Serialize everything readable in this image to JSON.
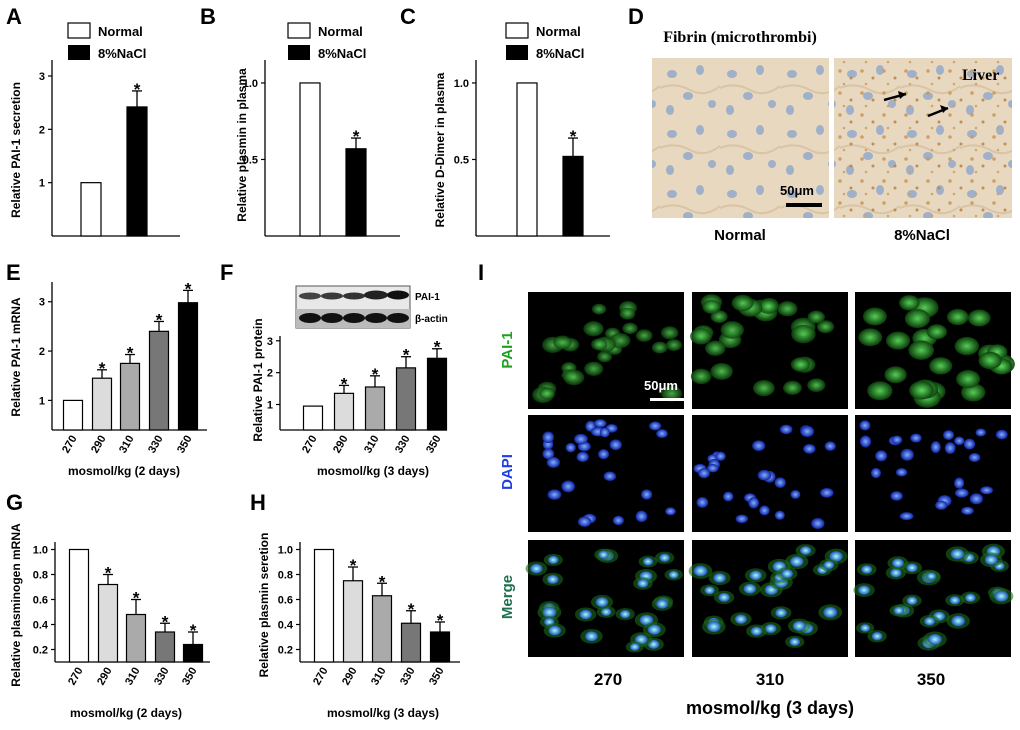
{
  "panels": {
    "A": "A",
    "B": "B",
    "C": "C",
    "D": "D",
    "E": "E",
    "F": "F",
    "G": "G",
    "H": "H",
    "I": "I"
  },
  "legend": {
    "normal": "Normal",
    "nacl": "8%NaCl"
  },
  "colors": {
    "normal": "#ffffff",
    "nacl": "#000000",
    "g270": "#ffffff",
    "g290": "#dcdcdc",
    "g310": "#aaaaaa",
    "g330": "#777777",
    "g350": "#000000",
    "pai1": "#1fa01f",
    "dapi": "#1f3fe0",
    "merge": "#1f6f4f",
    "tissue": "#e8d8c0",
    "nucleus": "#9fb0c8"
  },
  "chart_data": [
    {
      "id": "A",
      "type": "bar",
      "categories": [
        "Normal",
        "8%NaCl"
      ],
      "values": [
        1.0,
        2.42
      ],
      "errors": [
        0,
        0.3
      ],
      "sig": [
        false,
        true
      ],
      "ylabel": "Relative PAI-1 secretion",
      "ylim": [
        0,
        3.3
      ],
      "ticks": [
        1,
        2,
        3
      ],
      "tick_labels": [
        "1",
        "2",
        "3"
      ]
    },
    {
      "id": "B",
      "type": "bar",
      "categories": [
        "Normal",
        "8%NaCl"
      ],
      "values": [
        1.0,
        0.57
      ],
      "errors": [
        0,
        0.07
      ],
      "sig": [
        false,
        true
      ],
      "ylabel": "Relative plasmin in plasma",
      "ylim": [
        0,
        1.15
      ],
      "ticks": [
        0.5,
        1.0
      ],
      "tick_labels": [
        "0.5",
        "1.0"
      ]
    },
    {
      "id": "C",
      "type": "bar",
      "categories": [
        "Normal",
        "8%NaCl"
      ],
      "values": [
        1.0,
        0.52
      ],
      "errors": [
        0,
        0.12
      ],
      "sig": [
        false,
        true
      ],
      "ylabel": "Relative D-Dimer in plasma",
      "ylim": [
        0,
        1.15
      ],
      "ticks": [
        0.5,
        1.0
      ],
      "tick_labels": [
        "0.5",
        "1.0"
      ]
    },
    {
      "id": "E",
      "type": "bar",
      "categories": [
        "270",
        "290",
        "310",
        "330",
        "350"
      ],
      "values": [
        1.0,
        1.45,
        1.75,
        2.4,
        2.98
      ],
      "errors": [
        0,
        0.17,
        0.18,
        0.2,
        0.25
      ],
      "sig": [
        false,
        true,
        true,
        true,
        true
      ],
      "ylabel": "Relative PAI-1 mRNA",
      "xlabel": "mosmol/kg (2 days)",
      "ylim": [
        0.4,
        3.4
      ],
      "ticks": [
        1,
        2,
        3
      ],
      "tick_labels": [
        "1",
        "2",
        "3"
      ]
    },
    {
      "id": "F",
      "type": "bar",
      "categories": [
        "270",
        "290",
        "310",
        "330",
        "350"
      ],
      "values": [
        0.95,
        1.35,
        1.55,
        2.15,
        2.45
      ],
      "errors": [
        0,
        0.25,
        0.35,
        0.35,
        0.3
      ],
      "sig": [
        false,
        true,
        true,
        true,
        true
      ],
      "ylabel": "Relative PAI-1 protein",
      "xlabel": "mosmol/kg (3 days)",
      "ylim": [
        0.2,
        3.15
      ],
      "ticks": [
        1,
        2,
        3
      ],
      "tick_labels": [
        "1",
        "2",
        "3"
      ],
      "blot_labels": [
        "PAI-1",
        "β-actin"
      ]
    },
    {
      "id": "G",
      "type": "bar",
      "categories": [
        "270",
        "290",
        "310",
        "330",
        "350"
      ],
      "values": [
        1.0,
        0.72,
        0.48,
        0.34,
        0.24
      ],
      "errors": [
        0,
        0.08,
        0.12,
        0.07,
        0.1
      ],
      "sig": [
        false,
        true,
        true,
        true,
        true
      ],
      "ylabel": "Relative plasminogen mRNA",
      "xlabel": "mosmol/kg (2 days)",
      "ylim": [
        0.1,
        1.06
      ],
      "ticks": [
        0.2,
        0.4,
        0.6,
        0.8,
        1.0
      ],
      "tick_labels": [
        "0.2",
        "0.4",
        "0.6",
        "0.8",
        "1.0"
      ]
    },
    {
      "id": "H",
      "type": "bar",
      "categories": [
        "270",
        "290",
        "310",
        "330",
        "350"
      ],
      "values": [
        1.0,
        0.75,
        0.63,
        0.41,
        0.34
      ],
      "errors": [
        0,
        0.11,
        0.1,
        0.1,
        0.08
      ],
      "sig": [
        false,
        true,
        true,
        true,
        true
      ],
      "ylabel": "Relative plasmin seretion",
      "xlabel": "mosmol/kg (3 days)",
      "ylim": [
        0.1,
        1.06
      ],
      "ticks": [
        0.2,
        0.4,
        0.6,
        0.8,
        1.0
      ],
      "tick_labels": [
        "0.2",
        "0.4",
        "0.6",
        "0.8",
        "1.0"
      ]
    }
  ],
  "panel_D": {
    "title": "Fibrin (microthrombi)",
    "organ": "Liver",
    "scale": "50μm",
    "labels": [
      "Normal",
      "8%NaCl"
    ]
  },
  "panel_I": {
    "rows": [
      "PAI-1",
      "DAPI",
      "Merge"
    ],
    "cols": [
      "270",
      "310",
      "350"
    ],
    "scale": "50μm",
    "xlabel": "mosmol/kg (3 days)"
  }
}
